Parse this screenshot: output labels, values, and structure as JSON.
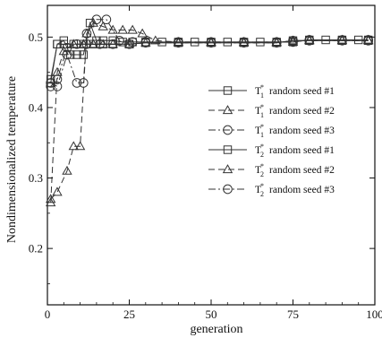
{
  "chart_data": {
    "type": "line",
    "title": "",
    "xlabel": "generation",
    "ylabel": "Nondimensionalized temperature",
    "xlim": [
      0,
      100
    ],
    "ylim": [
      0.12,
      0.545
    ],
    "x_ticks": [
      0,
      25,
      50,
      75,
      100
    ],
    "y_ticks": [
      0.2,
      0.3,
      0.4,
      0.5
    ],
    "x_tick_labels": [
      "0",
      "25",
      "50",
      "75",
      "100"
    ],
    "y_tick_labels": [
      "0.2",
      "0.3",
      "0.4",
      "0.5"
    ],
    "legend_position": "center-right",
    "series": [
      {
        "name": "T1* random seed #1",
        "legend": {
          "var": "T",
          "sub": "1",
          "sup": "*",
          "text": "random seed #1"
        },
        "marker": "square",
        "dash": "solid",
        "points": [
          [
            1,
            0.435
          ],
          [
            3,
            0.49
          ],
          [
            5,
            0.495
          ],
          [
            7,
            0.475
          ],
          [
            9,
            0.475
          ],
          [
            11,
            0.475
          ],
          [
            13,
            0.52
          ],
          [
            15,
            0.495
          ],
          [
            17,
            0.495
          ],
          [
            20,
            0.495
          ],
          [
            23,
            0.493
          ],
          [
            26,
            0.493
          ],
          [
            30,
            0.493
          ],
          [
            35,
            0.493
          ],
          [
            40,
            0.493
          ],
          [
            45,
            0.493
          ],
          [
            50,
            0.493
          ],
          [
            55,
            0.493
          ],
          [
            60,
            0.493
          ],
          [
            65,
            0.493
          ],
          [
            70,
            0.493
          ],
          [
            75,
            0.493
          ],
          [
            80,
            0.496
          ],
          [
            85,
            0.496
          ],
          [
            90,
            0.496
          ],
          [
            95,
            0.496
          ],
          [
            98,
            0.496
          ]
        ]
      },
      {
        "name": "T1* random seed #2",
        "legend": {
          "var": "T",
          "sub": "1",
          "sup": "*",
          "text": "random seed #2"
        },
        "marker": "triangle",
        "dash": "long-dash",
        "points": [
          [
            1,
            0.27
          ],
          [
            3,
            0.28
          ],
          [
            6,
            0.31
          ],
          [
            8,
            0.345
          ],
          [
            10,
            0.345
          ],
          [
            12,
            0.505
          ],
          [
            14,
            0.52
          ],
          [
            17,
            0.515
          ],
          [
            20,
            0.51
          ],
          [
            23,
            0.51
          ],
          [
            26,
            0.51
          ],
          [
            29,
            0.505
          ],
          [
            33,
            0.495
          ],
          [
            40,
            0.493
          ],
          [
            50,
            0.493
          ],
          [
            60,
            0.493
          ],
          [
            70,
            0.493
          ],
          [
            75,
            0.493
          ],
          [
            80,
            0.496
          ],
          [
            90,
            0.496
          ],
          [
            98,
            0.496
          ]
        ]
      },
      {
        "name": "T1* random seed #3",
        "legend": {
          "var": "T",
          "sub": "1",
          "sup": "*",
          "text": "random seed #3"
        },
        "marker": "circle",
        "dash": "dash-dot",
        "points": [
          [
            1,
            0.435
          ],
          [
            3,
            0.43
          ],
          [
            6,
            0.475
          ],
          [
            9,
            0.435
          ],
          [
            11,
            0.435
          ],
          [
            12,
            0.505
          ],
          [
            15,
            0.525
          ],
          [
            18,
            0.525
          ],
          [
            22,
            0.495
          ],
          [
            26,
            0.493
          ],
          [
            30,
            0.493
          ],
          [
            40,
            0.493
          ],
          [
            50,
            0.493
          ],
          [
            60,
            0.493
          ],
          [
            70,
            0.493
          ],
          [
            75,
            0.493
          ],
          [
            80,
            0.496
          ],
          [
            90,
            0.496
          ],
          [
            98,
            0.496
          ]
        ]
      },
      {
        "name": "T2* random seed #1",
        "legend": {
          "var": "T",
          "sub": "2",
          "sup": "*",
          "text": "random seed #1"
        },
        "marker": "square",
        "dash": "solid",
        "points": [
          [
            1,
            0.44
          ],
          [
            3,
            0.49
          ],
          [
            5,
            0.49
          ],
          [
            8,
            0.49
          ],
          [
            11,
            0.49
          ],
          [
            14,
            0.49
          ],
          [
            17,
            0.49
          ],
          [
            20,
            0.49
          ],
          [
            25,
            0.49
          ],
          [
            30,
            0.492
          ],
          [
            40,
            0.492
          ],
          [
            50,
            0.492
          ],
          [
            60,
            0.492
          ],
          [
            70,
            0.492
          ],
          [
            75,
            0.495
          ],
          [
            80,
            0.495
          ],
          [
            90,
            0.495
          ],
          [
            98,
            0.495
          ]
        ]
      },
      {
        "name": "T2* random seed #2",
        "legend": {
          "var": "T",
          "sub": "2",
          "sup": "*",
          "text": "random seed #2"
        },
        "marker": "triangle",
        "dash": "long-dash",
        "points": [
          [
            1,
            0.265
          ],
          [
            3,
            0.45
          ],
          [
            5,
            0.48
          ],
          [
            8,
            0.49
          ],
          [
            11,
            0.49
          ],
          [
            14,
            0.49
          ],
          [
            17,
            0.49
          ],
          [
            20,
            0.49
          ],
          [
            25,
            0.49
          ],
          [
            30,
            0.492
          ],
          [
            40,
            0.492
          ],
          [
            50,
            0.492
          ],
          [
            60,
            0.492
          ],
          [
            70,
            0.492
          ],
          [
            75,
            0.495
          ],
          [
            80,
            0.495
          ],
          [
            90,
            0.495
          ],
          [
            98,
            0.495
          ]
        ]
      },
      {
        "name": "T2* random seed #3",
        "legend": {
          "var": "T",
          "sub": "2",
          "sup": "*",
          "text": "random seed #3"
        },
        "marker": "circle",
        "dash": "dash-dot",
        "points": [
          [
            1,
            0.43
          ],
          [
            3,
            0.44
          ],
          [
            6,
            0.485
          ],
          [
            9,
            0.49
          ],
          [
            12,
            0.49
          ],
          [
            16,
            0.49
          ],
          [
            20,
            0.49
          ],
          [
            25,
            0.49
          ],
          [
            30,
            0.492
          ],
          [
            40,
            0.492
          ],
          [
            50,
            0.492
          ],
          [
            60,
            0.492
          ],
          [
            70,
            0.492
          ],
          [
            75,
            0.495
          ],
          [
            80,
            0.495
          ],
          [
            90,
            0.495
          ],
          [
            98,
            0.495
          ]
        ]
      }
    ],
    "colors": {
      "line": "#333333",
      "axis": "#111111",
      "background": "#ffffff"
    }
  }
}
